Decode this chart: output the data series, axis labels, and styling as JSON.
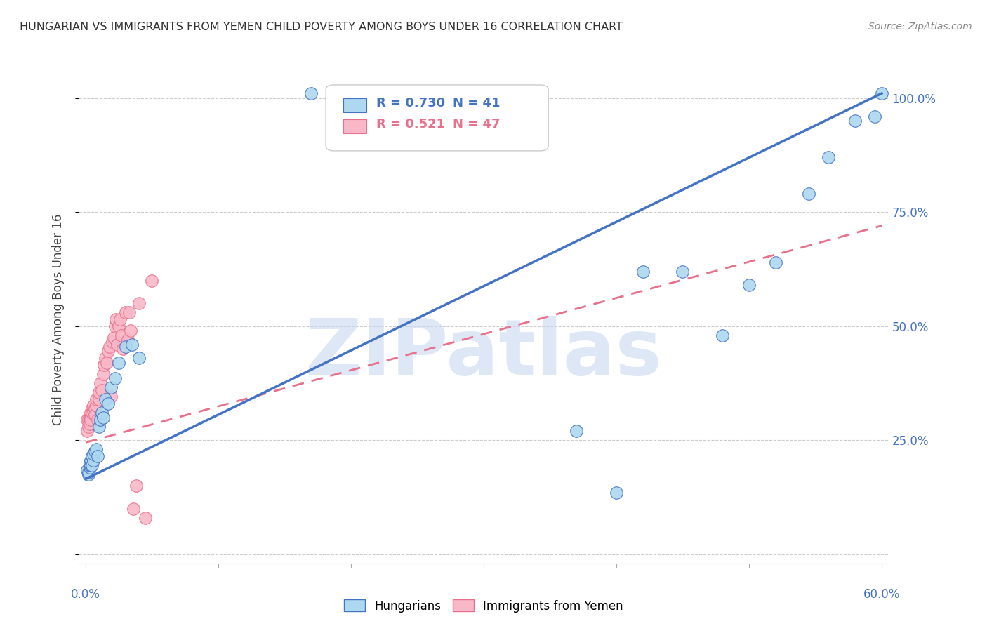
{
  "title": "HUNGARIAN VS IMMIGRANTS FROM YEMEN CHILD POVERTY AMONG BOYS UNDER 16 CORRELATION CHART",
  "source": "Source: ZipAtlas.com",
  "ylabel": "Child Poverty Among Boys Under 16",
  "legend_blue_r": "R = 0.730",
  "legend_blue_n": "N = 41",
  "legend_pink_r": "R = 0.521",
  "legend_pink_n": "N = 47",
  "blue_color": "#ADD8F0",
  "pink_color": "#F9B8C8",
  "blue_line_color": "#4472C4",
  "pink_line_color": "#E8708A",
  "watermark": "ZIPatlas",
  "watermark_color": "#C8D8F0",
  "xlim": [
    0.0,
    0.6
  ],
  "ylim": [
    0.0,
    1.05
  ],
  "yticks": [
    0.0,
    0.25,
    0.5,
    0.75,
    1.0
  ],
  "ytick_labels": [
    "",
    "25.0%",
    "50.0%",
    "75.0%",
    "100.0%"
  ],
  "blue_x": [
    0.001,
    0.002,
    0.002,
    0.003,
    0.003,
    0.003,
    0.004,
    0.004,
    0.005,
    0.005,
    0.006,
    0.006,
    0.007,
    0.008,
    0.009,
    0.01,
    0.011,
    0.012,
    0.013,
    0.015,
    0.017,
    0.019,
    0.022,
    0.025,
    0.03,
    0.035,
    0.04,
    0.17,
    0.2,
    0.37,
    0.4,
    0.42,
    0.45,
    0.48,
    0.5,
    0.52,
    0.545,
    0.56,
    0.58,
    0.595,
    0.6
  ],
  "blue_y": [
    0.185,
    0.175,
    0.18,
    0.19,
    0.195,
    0.2,
    0.195,
    0.205,
    0.195,
    0.215,
    0.205,
    0.22,
    0.225,
    0.23,
    0.215,
    0.28,
    0.295,
    0.31,
    0.3,
    0.34,
    0.33,
    0.365,
    0.385,
    0.42,
    0.455,
    0.46,
    0.43,
    1.01,
    1.01,
    0.27,
    0.135,
    0.62,
    0.62,
    0.48,
    0.59,
    0.64,
    0.79,
    0.87,
    0.95,
    0.96,
    1.01
  ],
  "pink_x": [
    0.001,
    0.001,
    0.002,
    0.002,
    0.003,
    0.003,
    0.004,
    0.004,
    0.004,
    0.005,
    0.005,
    0.006,
    0.006,
    0.007,
    0.007,
    0.008,
    0.008,
    0.009,
    0.01,
    0.01,
    0.011,
    0.012,
    0.013,
    0.014,
    0.015,
    0.016,
    0.017,
    0.018,
    0.019,
    0.02,
    0.021,
    0.022,
    0.023,
    0.024,
    0.025,
    0.026,
    0.027,
    0.028,
    0.03,
    0.032,
    0.033,
    0.034,
    0.036,
    0.038,
    0.04,
    0.045,
    0.05
  ],
  "pink_y": [
    0.27,
    0.295,
    0.28,
    0.295,
    0.285,
    0.3,
    0.3,
    0.31,
    0.295,
    0.32,
    0.31,
    0.315,
    0.325,
    0.32,
    0.305,
    0.325,
    0.34,
    0.295,
    0.34,
    0.355,
    0.375,
    0.36,
    0.395,
    0.415,
    0.43,
    0.42,
    0.445,
    0.455,
    0.345,
    0.465,
    0.475,
    0.5,
    0.515,
    0.46,
    0.5,
    0.515,
    0.48,
    0.45,
    0.53,
    0.47,
    0.53,
    0.49,
    0.1,
    0.15,
    0.55,
    0.08,
    0.6
  ],
  "blue_line_x0": 0.0,
  "blue_line_y0": 0.165,
  "blue_line_x1": 0.6,
  "blue_line_y1": 1.01,
  "pink_line_x0": 0.0,
  "pink_line_y0": 0.245,
  "pink_line_x1": 0.6,
  "pink_line_y1": 0.72
}
